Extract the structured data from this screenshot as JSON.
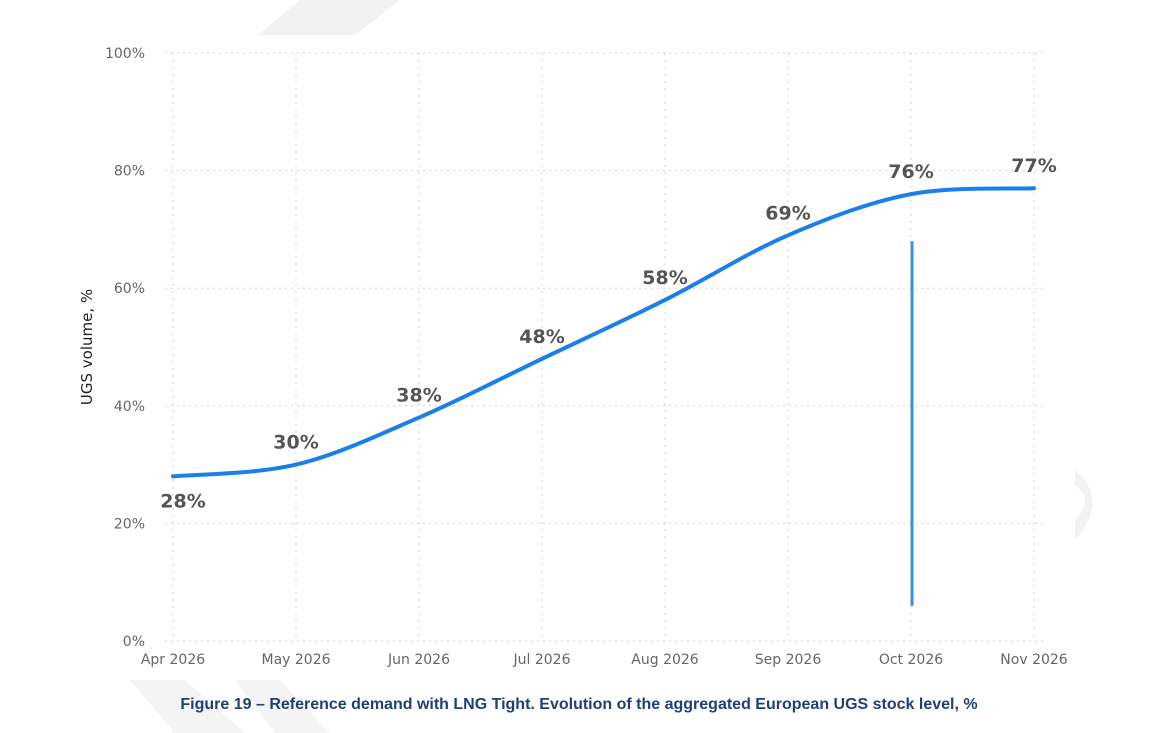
{
  "caption": "Figure 19 – Reference demand with LNG Tight. Evolution of the aggregated European UGS stock level, %",
  "chart_data": {
    "type": "line",
    "title": "",
    "xlabel": "",
    "ylabel": "UGS volume, %",
    "categories": [
      "Apr 2026",
      "May 2026",
      "Jun 2026",
      "Jul 2026",
      "Aug 2026",
      "Sep 2026",
      "Oct 2026",
      "Nov 2026"
    ],
    "values": [
      28,
      30,
      38,
      48,
      58,
      69,
      76,
      77
    ],
    "data_labels": [
      "28%",
      "30%",
      "38%",
      "48%",
      "58%",
      "69%",
      "76%",
      "77%"
    ],
    "ylim": [
      0,
      100
    ],
    "yticks": [
      0,
      20,
      40,
      60,
      80,
      100
    ],
    "ytick_labels": [
      "0%",
      "20%",
      "40%",
      "60%",
      "80%",
      "100%"
    ],
    "grid": true,
    "line_color": "#1a7fe8",
    "marker_line": {
      "category": "Oct 2026",
      "from": 6,
      "to": 68,
      "color": "#3a8ee6"
    }
  }
}
